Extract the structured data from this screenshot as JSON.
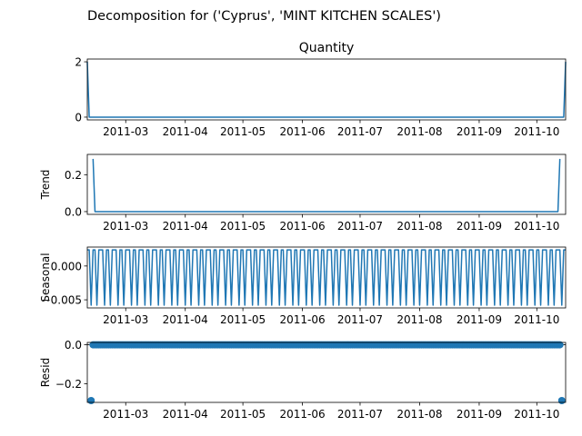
{
  "chart_data": {
    "suptitle": "Decomposition for ('Cyprus', 'MINT KITCHEN SCALES')",
    "x_tick_labels": [
      "2011-03",
      "2011-04",
      "2011-05",
      "2011-06",
      "2011-07",
      "2011-08",
      "2011-09",
      "2011-10"
    ],
    "x_ticks": [
      "2011-03-01",
      "2011-04-01",
      "2011-05-01",
      "2011-06-01",
      "2011-07-01",
      "2011-08-01",
      "2011-09-01",
      "2011-10-01"
    ],
    "x_range": [
      "2011-02-09",
      "2011-10-16"
    ],
    "panels": [
      {
        "id": "observed",
        "type": "line",
        "title": "Quantity",
        "ylabel": "",
        "ylim": [
          -0.1,
          2.1
        ],
        "y_ticks": [
          0,
          2
        ],
        "y_tick_labels": [
          "0",
          "2"
        ],
        "color": "#1f77b4",
        "series": [
          {
            "points": [
              [
                "2011-02-09",
                2
              ],
              [
                "2011-02-10",
                0
              ],
              [
                "2011-10-15",
                0
              ],
              [
                "2011-10-16",
                2
              ]
            ]
          }
        ]
      },
      {
        "id": "trend",
        "type": "line",
        "title": "",
        "ylabel": "Trend",
        "ylim": [
          -0.015,
          0.31
        ],
        "y_ticks": [
          0.0,
          0.2
        ],
        "y_tick_labels": [
          "0.0",
          "0.2"
        ],
        "color": "#1f77b4",
        "series": [
          {
            "points": [
              [
                "2011-02-12",
                0.2857
              ],
              [
                "2011-02-13",
                0
              ],
              [
                "2011-10-12",
                0
              ],
              [
                "2011-10-13",
                0.2857
              ]
            ]
          }
        ]
      },
      {
        "id": "seasonal",
        "type": "line",
        "title": "",
        "ylabel": "Seasonal",
        "ylim": [
          -0.0062,
          0.0028
        ],
        "y_ticks": [
          0.0,
          -0.005
        ],
        "y_tick_labels": [
          "0.000",
          "−0.005"
        ],
        "color": "#1f77b4",
        "series": [
          {
            "period_days": 7,
            "start": "2011-02-09",
            "end": "2011-10-16",
            "weekly_values": [
              0.00238,
              0.00238,
              -0.0058,
              0.00238,
              0.00238,
              -0.0058,
              0.00238
            ]
          }
        ]
      },
      {
        "id": "resid",
        "type": "scatter",
        "title": "",
        "ylabel": "Resid",
        "ylim": [
          -0.295,
          0.012
        ],
        "y_ticks": [
          0.0,
          -0.2
        ],
        "y_tick_labels": [
          "0.0",
          "−0.2"
        ],
        "color": "#1f77b4",
        "baseline": 0,
        "series": [
          {
            "points_range": {
              "start": "2011-02-12",
              "end": "2011-10-13",
              "value": 0
            },
            "outliers": [
              [
                "2011-02-11",
                -0.2857
              ],
              [
                "2011-10-14",
                -0.2857
              ]
            ]
          }
        ]
      }
    ]
  }
}
